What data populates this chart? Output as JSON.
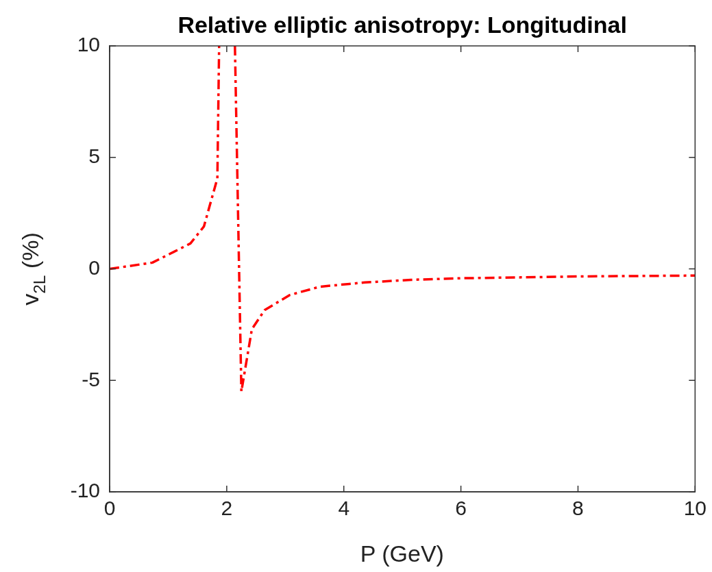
{
  "chart_data": {
    "type": "line",
    "title": "Relative elliptic anisotropy: Longitudinal",
    "xlabel": "P (GeV)",
    "ylabel": "v$_{2L}$ (%)",
    "series": [
      {
        "color": "#ff0000",
        "x": [
          0,
          0.73,
          1.38,
          1.61,
          1.84,
          1.87,
          null,
          2.14,
          2.25,
          2.43,
          2.65,
          3.08,
          3.59,
          4.36,
          5.15,
          6,
          7.29,
          8,
          10
        ],
        "values": [
          0,
          0.28,
          1.14,
          1.9,
          4.06,
          10,
          null,
          10,
          -5.5,
          -2.7,
          -1.84,
          -1.17,
          -0.8,
          -0.61,
          -0.49,
          -0.42,
          -0.37,
          -0.34,
          -0.3
        ]
      }
    ],
    "xlim": [
      0,
      10
    ],
    "xticks": [
      0,
      2,
      4,
      6,
      8,
      10
    ],
    "ylim": [
      -10,
      10
    ],
    "yticks": [
      -10,
      -5,
      0,
      5,
      10
    ],
    "grid": false,
    "legend": false,
    "marker": "none",
    "line_style": "dashed"
  }
}
